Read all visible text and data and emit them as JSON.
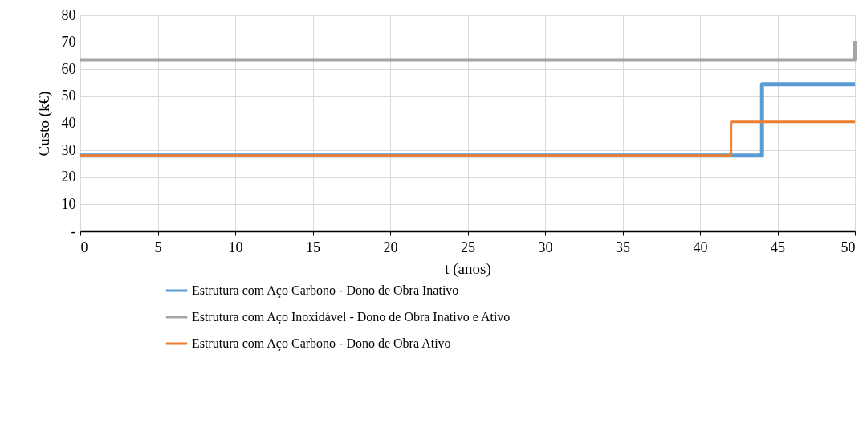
{
  "chart_data": {
    "type": "step",
    "xlabel": "t (anos)",
    "ylabel": "Custo (k€)",
    "xlim": [
      0,
      50
    ],
    "xticks": [
      0,
      5,
      10,
      15,
      20,
      25,
      30,
      35,
      40,
      45,
      50
    ],
    "ylim": [
      0,
      80
    ],
    "yticks": [
      {
        "value": 0,
        "label": "-"
      },
      10,
      20,
      30,
      40,
      50,
      60,
      70,
      80
    ],
    "grid": true,
    "legend": "bottom",
    "series": [
      {
        "name": "Estrutura com Aço Carbono - Dono de Obra Inativo",
        "color": "#5b9bd5",
        "x": [
          0,
          44,
          50
        ],
        "values": [
          28,
          54.5,
          54.5
        ]
      },
      {
        "name": "Estrutura com Aço Inoxidável - Dono de Obra Inativo e Ativo",
        "color": "#a5a5a5",
        "x": [
          0,
          50,
          50
        ],
        "values": [
          63.5,
          63.5,
          70.5
        ]
      },
      {
        "name": "Estrutura com Aço Carbono - Dono de Obra Ativo",
        "color": "#ed7d31",
        "x": [
          0,
          42,
          50
        ],
        "values": [
          28,
          40.5,
          40.5
        ]
      }
    ]
  }
}
